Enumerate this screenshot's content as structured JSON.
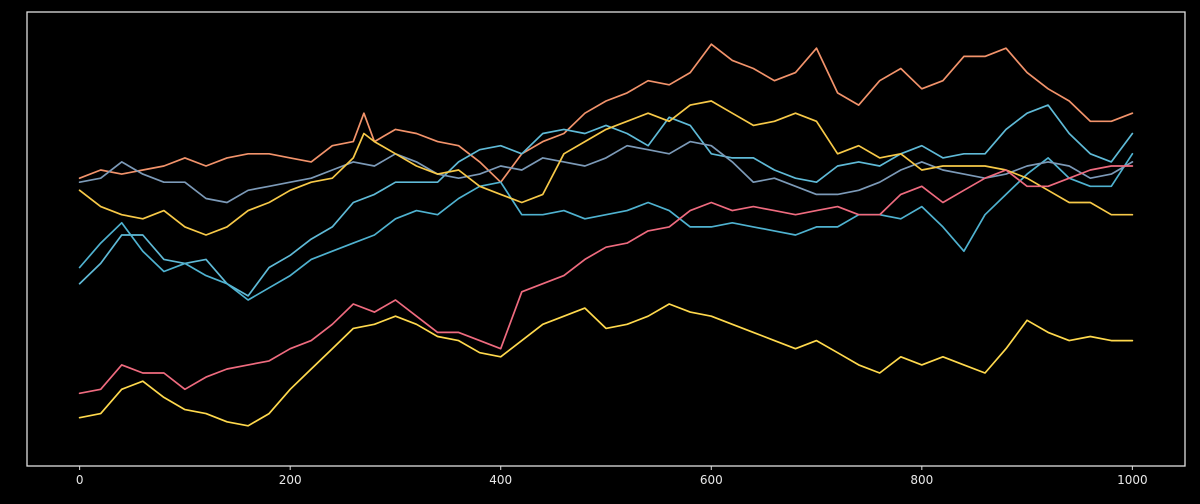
{
  "chart_data": {
    "type": "line",
    "title": "",
    "xlabel": "",
    "ylabel": "",
    "xlim": [
      -50,
      1050
    ],
    "ylim": [
      0,
      100
    ],
    "x_ticks": [
      0,
      200,
      400,
      600,
      800,
      1000
    ],
    "x_tick_labels": [
      "0",
      "200",
      "400",
      "600",
      "800",
      "1000"
    ],
    "y_ticks_shown": false,
    "grid": false,
    "legend": "none",
    "background": "#000000",
    "series": [
      {
        "color": "#f2936b",
        "x": [
          0,
          20,
          40,
          60,
          80,
          100,
          120,
          140,
          160,
          180,
          200,
          220,
          240,
          260,
          270,
          280,
          300,
          320,
          340,
          360,
          380,
          400,
          420,
          440,
          460,
          480,
          500,
          520,
          540,
          560,
          580,
          600,
          620,
          640,
          660,
          680,
          700,
          720,
          740,
          760,
          780,
          800,
          820,
          840,
          860,
          880,
          900,
          920,
          940,
          960,
          980,
          1000
        ],
        "y": [
          64,
          66,
          65,
          66,
          67,
          69,
          67,
          69,
          70,
          70,
          69,
          68,
          72,
          73,
          80,
          73,
          76,
          75,
          73,
          72,
          68,
          63,
          70,
          73,
          75,
          80,
          83,
          85,
          88,
          87,
          90,
          97,
          93,
          91,
          88,
          90,
          96,
          85,
          82,
          88,
          91,
          86,
          88,
          94,
          94,
          96,
          90,
          86,
          83,
          78,
          78,
          80
        ]
      },
      {
        "color": "#5fbad7",
        "x": [
          0,
          20,
          40,
          60,
          80,
          100,
          120,
          140,
          160,
          180,
          200,
          220,
          240,
          260,
          280,
          300,
          320,
          340,
          360,
          380,
          400,
          420,
          440,
          460,
          480,
          500,
          520,
          540,
          560,
          580,
          600,
          620,
          640,
          660,
          680,
          700,
          720,
          740,
          760,
          780,
          800,
          820,
          840,
          860,
          880,
          900,
          920,
          940,
          960,
          980,
          1000
        ],
        "y": [
          38,
          43,
          50,
          50,
          44,
          43,
          44,
          38,
          35,
          42,
          45,
          49,
          52,
          58,
          60,
          63,
          63,
          63,
          68,
          71,
          72,
          70,
          75,
          76,
          75,
          77,
          75,
          72,
          79,
          77,
          70,
          69,
          69,
          66,
          64,
          63,
          67,
          68,
          67,
          70,
          72,
          69,
          70,
          70,
          76,
          80,
          82,
          75,
          70,
          68,
          75
        ]
      },
      {
        "color": "#4fb2d0",
        "x": [
          0,
          20,
          40,
          60,
          80,
          100,
          120,
          140,
          160,
          180,
          200,
          220,
          240,
          260,
          280,
          300,
          320,
          340,
          360,
          380,
          400,
          420,
          440,
          460,
          480,
          500,
          520,
          540,
          560,
          580,
          600,
          620,
          640,
          660,
          680,
          700,
          720,
          740,
          760,
          780,
          800,
          820,
          840,
          860,
          880,
          900,
          920,
          940,
          960,
          980,
          1000
        ],
        "y": [
          42,
          48,
          53,
          46,
          41,
          43,
          40,
          38,
          34,
          37,
          40,
          44,
          46,
          48,
          50,
          54,
          56,
          55,
          59,
          62,
          63,
          55,
          55,
          56,
          54,
          55,
          56,
          58,
          56,
          52,
          52,
          53,
          52,
          51,
          50,
          52,
          52,
          55,
          55,
          54,
          57,
          52,
          46,
          55,
          60,
          65,
          69,
          64,
          62,
          62,
          70
        ]
      },
      {
        "color": "#7c9ab8",
        "x": [
          0,
          20,
          40,
          60,
          80,
          100,
          120,
          140,
          160,
          180,
          200,
          220,
          240,
          260,
          280,
          300,
          320,
          340,
          360,
          380,
          400,
          420,
          440,
          460,
          480,
          500,
          520,
          540,
          560,
          580,
          600,
          620,
          640,
          660,
          680,
          700,
          720,
          740,
          760,
          780,
          800,
          820,
          840,
          860,
          880,
          900,
          920,
          940,
          960,
          980,
          1000
        ],
        "y": [
          63,
          64,
          68,
          65,
          63,
          63,
          59,
          58,
          61,
          62,
          63,
          64,
          66,
          68,
          67,
          70,
          68,
          65,
          64,
          65,
          67,
          66,
          69,
          68,
          67,
          69,
          72,
          71,
          70,
          73,
          72,
          68,
          63,
          64,
          62,
          60,
          60,
          61,
          63,
          66,
          68,
          66,
          65,
          64,
          65,
          67,
          68,
          67,
          64,
          65,
          68
        ]
      },
      {
        "color": "#f7c948",
        "x": [
          0,
          20,
          40,
          60,
          80,
          100,
          120,
          140,
          160,
          180,
          200,
          220,
          240,
          260,
          270,
          280,
          300,
          320,
          340,
          360,
          380,
          400,
          420,
          440,
          460,
          480,
          500,
          520,
          540,
          560,
          580,
          600,
          620,
          640,
          660,
          680,
          700,
          720,
          740,
          760,
          780,
          800,
          820,
          840,
          860,
          880,
          900,
          920,
          940,
          960,
          980,
          1000
        ],
        "y": [
          61,
          57,
          55,
          54,
          56,
          52,
          50,
          52,
          56,
          58,
          61,
          63,
          64,
          69,
          75,
          73,
          70,
          67,
          65,
          66,
          62,
          60,
          58,
          60,
          70,
          73,
          76,
          78,
          80,
          78,
          82,
          83,
          80,
          77,
          78,
          80,
          78,
          70,
          72,
          69,
          70,
          66,
          67,
          67,
          67,
          66,
          64,
          61,
          58,
          58,
          55,
          55
        ]
      },
      {
        "color": "#ef6b7f",
        "x": [
          0,
          20,
          40,
          60,
          80,
          100,
          120,
          140,
          160,
          180,
          200,
          220,
          240,
          260,
          280,
          300,
          320,
          340,
          360,
          380,
          400,
          420,
          440,
          460,
          480,
          500,
          520,
          540,
          560,
          580,
          600,
          620,
          640,
          660,
          680,
          700,
          720,
          740,
          760,
          780,
          800,
          820,
          840,
          860,
          880,
          900,
          920,
          940,
          960,
          980,
          1000
        ],
        "y": [
          11,
          12,
          18,
          16,
          16,
          12,
          15,
          17,
          18,
          19,
          22,
          24,
          28,
          33,
          31,
          34,
          30,
          26,
          26,
          24,
          22,
          36,
          38,
          40,
          44,
          47,
          48,
          51,
          52,
          56,
          58,
          56,
          57,
          56,
          55,
          56,
          57,
          55,
          55,
          60,
          62,
          58,
          61,
          64,
          66,
          62,
          62,
          64,
          66,
          67,
          67
        ]
      },
      {
        "color": "#ffd94d",
        "x": [
          0,
          20,
          40,
          60,
          80,
          100,
          120,
          140,
          160,
          180,
          200,
          220,
          240,
          260,
          280,
          300,
          320,
          340,
          360,
          380,
          400,
          420,
          440,
          460,
          480,
          500,
          520,
          540,
          560,
          580,
          600,
          620,
          640,
          660,
          680,
          700,
          720,
          740,
          760,
          780,
          800,
          820,
          840,
          860,
          880,
          900,
          920,
          940,
          960,
          980,
          1000
        ],
        "y": [
          5,
          6,
          12,
          14,
          10,
          7,
          6,
          4,
          3,
          6,
          12,
          17,
          22,
          27,
          28,
          30,
          28,
          25,
          24,
          21,
          20,
          24,
          28,
          30,
          32,
          27,
          28,
          30,
          33,
          31,
          30,
          28,
          26,
          24,
          22,
          24,
          21,
          18,
          16,
          20,
          18,
          20,
          18,
          16,
          22,
          29,
          26,
          24,
          25,
          24,
          24
        ]
      }
    ]
  }
}
